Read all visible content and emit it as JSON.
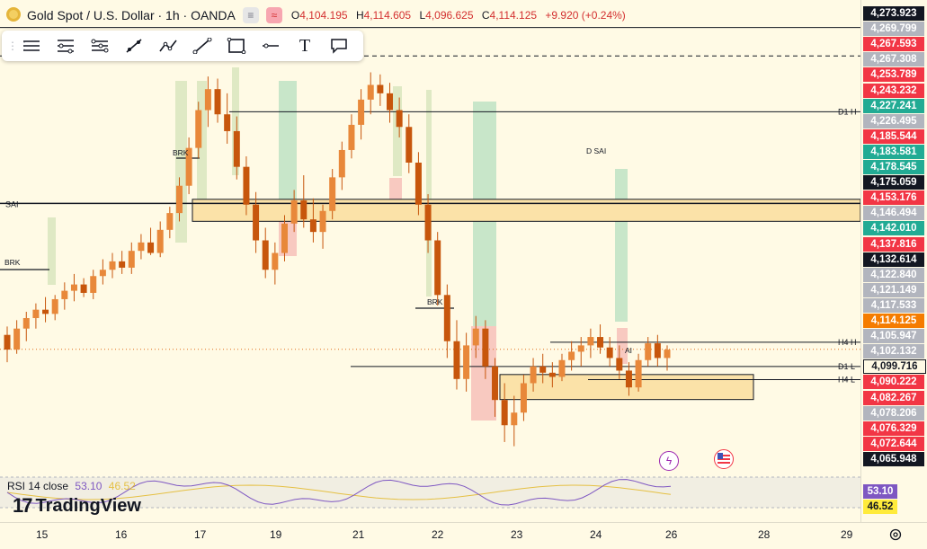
{
  "header": {
    "title": "Gold Spot / U.S. Dollar · 1h · OANDA",
    "ohlc": [
      {
        "key": "O",
        "value": "4,104.195"
      },
      {
        "key": "H",
        "value": "4,114.605"
      },
      {
        "key": "L",
        "value": "4,096.625"
      },
      {
        "key": "C",
        "value": "4,114.125"
      }
    ],
    "change": "+9.920 (+0.24%)"
  },
  "toolbar": {
    "tools": [
      "horizontal-lines-icon",
      "fib-levels-icon",
      "pitchfork-icon",
      "trend-line-icon",
      "path-icon",
      "ray-icon",
      "rectangle-icon",
      "horizontal-line-icon",
      "text-icon",
      "callout-icon"
    ],
    "text_tool_glyph": "T"
  },
  "chart_data": {
    "type": "candlestick",
    "symbol": "Gold Spot / U.S. Dollar",
    "interval": "1h",
    "y_range": [
      4058,
      4277
    ],
    "x_ticks": [
      "15",
      "16",
      "17",
      "19",
      "21",
      "22",
      "23",
      "24",
      "26",
      "28",
      "29"
    ],
    "price_scale_labels": [
      {
        "value": 4273.923,
        "text": "4,273.923",
        "color": "#131722",
        "bg": "#131722"
      },
      {
        "value": 4269.799,
        "text": "4,269.799",
        "color": "#ffffff",
        "bg": "#b2b5be"
      },
      {
        "value": 4267.593,
        "text": "4,267.593",
        "color": "#ffffff",
        "bg": "#f23645"
      },
      {
        "value": 4267.308,
        "text": "4,267.308",
        "color": "#ffffff",
        "bg": "#b2b5be"
      },
      {
        "value": 4253.789,
        "text": "4,253.789",
        "color": "#ffffff",
        "bg": "#f23645"
      },
      {
        "value": 4243.232,
        "text": "4,243.232",
        "color": "#ffffff",
        "bg": "#f23645"
      },
      {
        "value": 4227.241,
        "text": "4,227.241",
        "color": "#ffffff",
        "bg": "#22ab94"
      },
      {
        "value": 4226.495,
        "text": "4,226.495",
        "color": "#ffffff",
        "bg": "#b2b5be"
      },
      {
        "value": 4185.544,
        "text": "4,185.544",
        "color": "#ffffff",
        "bg": "#f23645"
      },
      {
        "value": 4183.581,
        "text": "4,183.581",
        "color": "#ffffff",
        "bg": "#22ab94"
      },
      {
        "value": 4178.545,
        "text": "4,178.545",
        "color": "#ffffff",
        "bg": "#22ab94"
      },
      {
        "value": 4175.059,
        "text": "4,175.059",
        "color": "#ffffff",
        "bg": "#131722"
      },
      {
        "value": 4153.176,
        "text": "4,153.176",
        "color": "#ffffff",
        "bg": "#f23645"
      },
      {
        "value": 4146.494,
        "text": "4,146.494",
        "color": "#ffffff",
        "bg": "#b2b5be"
      },
      {
        "value": 4142.01,
        "text": "4,142.010",
        "color": "#ffffff",
        "bg": "#22ab94"
      },
      {
        "value": 4137.816,
        "text": "4,137.816",
        "color": "#ffffff",
        "bg": "#f23645"
      },
      {
        "value": 4132.614,
        "text": "4,132.614",
        "color": "#ffffff",
        "bg": "#131722"
      },
      {
        "value": 4122.84,
        "text": "4,122.840",
        "color": "#ffffff",
        "bg": "#b2b5be"
      },
      {
        "value": 4121.149,
        "text": "4,121.149",
        "color": "#ffffff",
        "bg": "#b2b5be"
      },
      {
        "value": 4117.533,
        "text": "4,117.533",
        "color": "#ffffff",
        "bg": "#b2b5be"
      },
      {
        "value": 4114.125,
        "text": "4,114.125",
        "color": "#ffffff",
        "bg": "#f57c00"
      },
      {
        "value": 4105.947,
        "text": "4,105.947",
        "color": "#ffffff",
        "bg": "#b2b5be"
      },
      {
        "value": 4102.132,
        "text": "4,102.132",
        "color": "#ffffff",
        "bg": "#b2b5be"
      },
      {
        "value": 4099.716,
        "text": "4,099.716",
        "color": "#131722",
        "bg": "#fffae5"
      },
      {
        "value": 4090.222,
        "text": "4,090.222",
        "color": "#ffffff",
        "bg": "#f23645"
      },
      {
        "value": 4082.267,
        "text": "4,082.267",
        "color": "#ffffff",
        "bg": "#f23645"
      },
      {
        "value": 4078.206,
        "text": "4,078.206",
        "color": "#ffffff",
        "bg": "#b2b5be"
      },
      {
        "value": 4076.329,
        "text": "4,076.329",
        "color": "#ffffff",
        "bg": "#f23645"
      },
      {
        "value": 4072.644,
        "text": "4,072.644",
        "color": "#ffffff",
        "bg": "#f23645"
      },
      {
        "value": 4065.948,
        "text": "4,065.948",
        "color": "#ffffff",
        "bg": "#131722"
      }
    ],
    "levels": [
      {
        "label": "SAI",
        "price": 4183.581,
        "style": "solid"
      },
      {
        "label": "D1 H",
        "price": 4227.241,
        "style": "solid"
      },
      {
        "label": "H4 H",
        "price": 4117.533,
        "style": "solid"
      },
      {
        "label": "D1 L",
        "price": 4105.947,
        "style": "solid"
      },
      {
        "label": "H4 L",
        "price": 4099.716,
        "style": "solid"
      },
      {
        "label": "",
        "price": 4253.789,
        "style": "dashed"
      },
      {
        "label": "",
        "price": 4267.308,
        "style": "solid"
      }
    ],
    "annotations": [
      "BRK",
      "BRK",
      "BRK",
      "D SAI",
      "AI"
    ],
    "zones": [
      {
        "kind": "supply",
        "x0": "17",
        "x1": "29",
        "top": 4185.544,
        "bottom": 4175.059
      },
      {
        "kind": "demand",
        "x0": "23",
        "x1": "27",
        "top": 4102.132,
        "bottom": 4090.222
      }
    ],
    "ohlc_series": [
      [
        4121,
        4125,
        4108,
        4114
      ],
      [
        4114,
        4128,
        4112,
        4124
      ],
      [
        4124,
        4132,
        4118,
        4129
      ],
      [
        4129,
        4136,
        4124,
        4133
      ],
      [
        4133,
        4139,
        4127,
        4131
      ],
      [
        4131,
        4140,
        4128,
        4138
      ],
      [
        4138,
        4146,
        4133,
        4142
      ],
      [
        4142,
        4150,
        4137,
        4145
      ],
      [
        4145,
        4148,
        4139,
        4141
      ],
      [
        4141,
        4152,
        4138,
        4149
      ],
      [
        4149,
        4157,
        4145,
        4152
      ],
      [
        4152,
        4160,
        4148,
        4156
      ],
      [
        4156,
        4161,
        4150,
        4153
      ],
      [
        4153,
        4165,
        4150,
        4161
      ],
      [
        4161,
        4169,
        4157,
        4165
      ],
      [
        4165,
        4172,
        4159,
        4160
      ],
      [
        4160,
        4175,
        4158,
        4171
      ],
      [
        4171,
        4182,
        4167,
        4179
      ],
      [
        4179,
        4196,
        4175,
        4192
      ],
      [
        4192,
        4215,
        4188,
        4210
      ],
      [
        4210,
        4232,
        4205,
        4228
      ],
      [
        4228,
        4244,
        4220,
        4238
      ],
      [
        4238,
        4243,
        4222,
        4226
      ],
      [
        4226,
        4236,
        4212,
        4218
      ],
      [
        4218,
        4225,
        4195,
        4201
      ],
      [
        4201,
        4206,
        4178,
        4183
      ],
      [
        4183,
        4189,
        4160,
        4166
      ],
      [
        4166,
        4172,
        4148,
        4152
      ],
      [
        4152,
        4165,
        4145,
        4160
      ],
      [
        4160,
        4178,
        4156,
        4174
      ],
      [
        4174,
        4190,
        4170,
        4185
      ],
      [
        4185,
        4197,
        4172,
        4176
      ],
      [
        4176,
        4186,
        4165,
        4170
      ],
      [
        4170,
        4183,
        4162,
        4180
      ],
      [
        4180,
        4200,
        4176,
        4196
      ],
      [
        4196,
        4213,
        4190,
        4209
      ],
      [
        4209,
        4226,
        4205,
        4221
      ],
      [
        4221,
        4238,
        4214,
        4233
      ],
      [
        4233,
        4246,
        4226,
        4240
      ],
      [
        4240,
        4245,
        4230,
        4236
      ],
      [
        4236,
        4241,
        4222,
        4228
      ],
      [
        4228,
        4234,
        4215,
        4220
      ],
      [
        4220,
        4226,
        4198,
        4203
      ],
      [
        4203,
        4208,
        4178,
        4183
      ],
      [
        4183,
        4188,
        4160,
        4166
      ],
      [
        4166,
        4170,
        4135,
        4140
      ],
      [
        4140,
        4145,
        4110,
        4118
      ],
      [
        4118,
        4128,
        4095,
        4100
      ],
      [
        4100,
        4122,
        4094,
        4116
      ],
      [
        4116,
        4130,
        4110,
        4124
      ],
      [
        4124,
        4128,
        4100,
        4106
      ],
      [
        4106,
        4110,
        4082,
        4090
      ],
      [
        4090,
        4098,
        4070,
        4078
      ],
      [
        4078,
        4092,
        4068,
        4084
      ],
      [
        4084,
        4102,
        4080,
        4098
      ],
      [
        4098,
        4110,
        4094,
        4106
      ],
      [
        4106,
        4112,
        4098,
        4103
      ],
      [
        4103,
        4108,
        4096,
        4101
      ],
      [
        4101,
        4112,
        4099,
        4109
      ],
      [
        4109,
        4118,
        4104,
        4113
      ],
      [
        4113,
        4120,
        4106,
        4116
      ],
      [
        4116,
        4124,
        4110,
        4120
      ],
      [
        4120,
        4126,
        4112,
        4115
      ],
      [
        4115,
        4120,
        4106,
        4110
      ],
      [
        4110,
        4116,
        4100,
        4104
      ],
      [
        4104,
        4108,
        4092,
        4096
      ],
      [
        4096,
        4112,
        4094,
        4109
      ],
      [
        4109,
        4120,
        4106,
        4117
      ],
      [
        4117,
        4121,
        4106,
        4110
      ],
      [
        4110,
        4116,
        4104,
        4114
      ]
    ]
  },
  "rsi": {
    "label": "RSI 14 close",
    "value1": "53.10",
    "value2": "46.52",
    "scale_labels": [
      {
        "text": "53.10",
        "bg": "#7e57c2",
        "color": "#ffffff"
      },
      {
        "text": "46.52",
        "bg": "#ffeb3b",
        "color": "#131722"
      }
    ]
  },
  "brand": {
    "name": "TradingView",
    "mark": "17"
  },
  "colors": {
    "up": "#26a69a",
    "down": "#e06c1a",
    "candle": "#c7560c",
    "accent": "#2962ff"
  }
}
